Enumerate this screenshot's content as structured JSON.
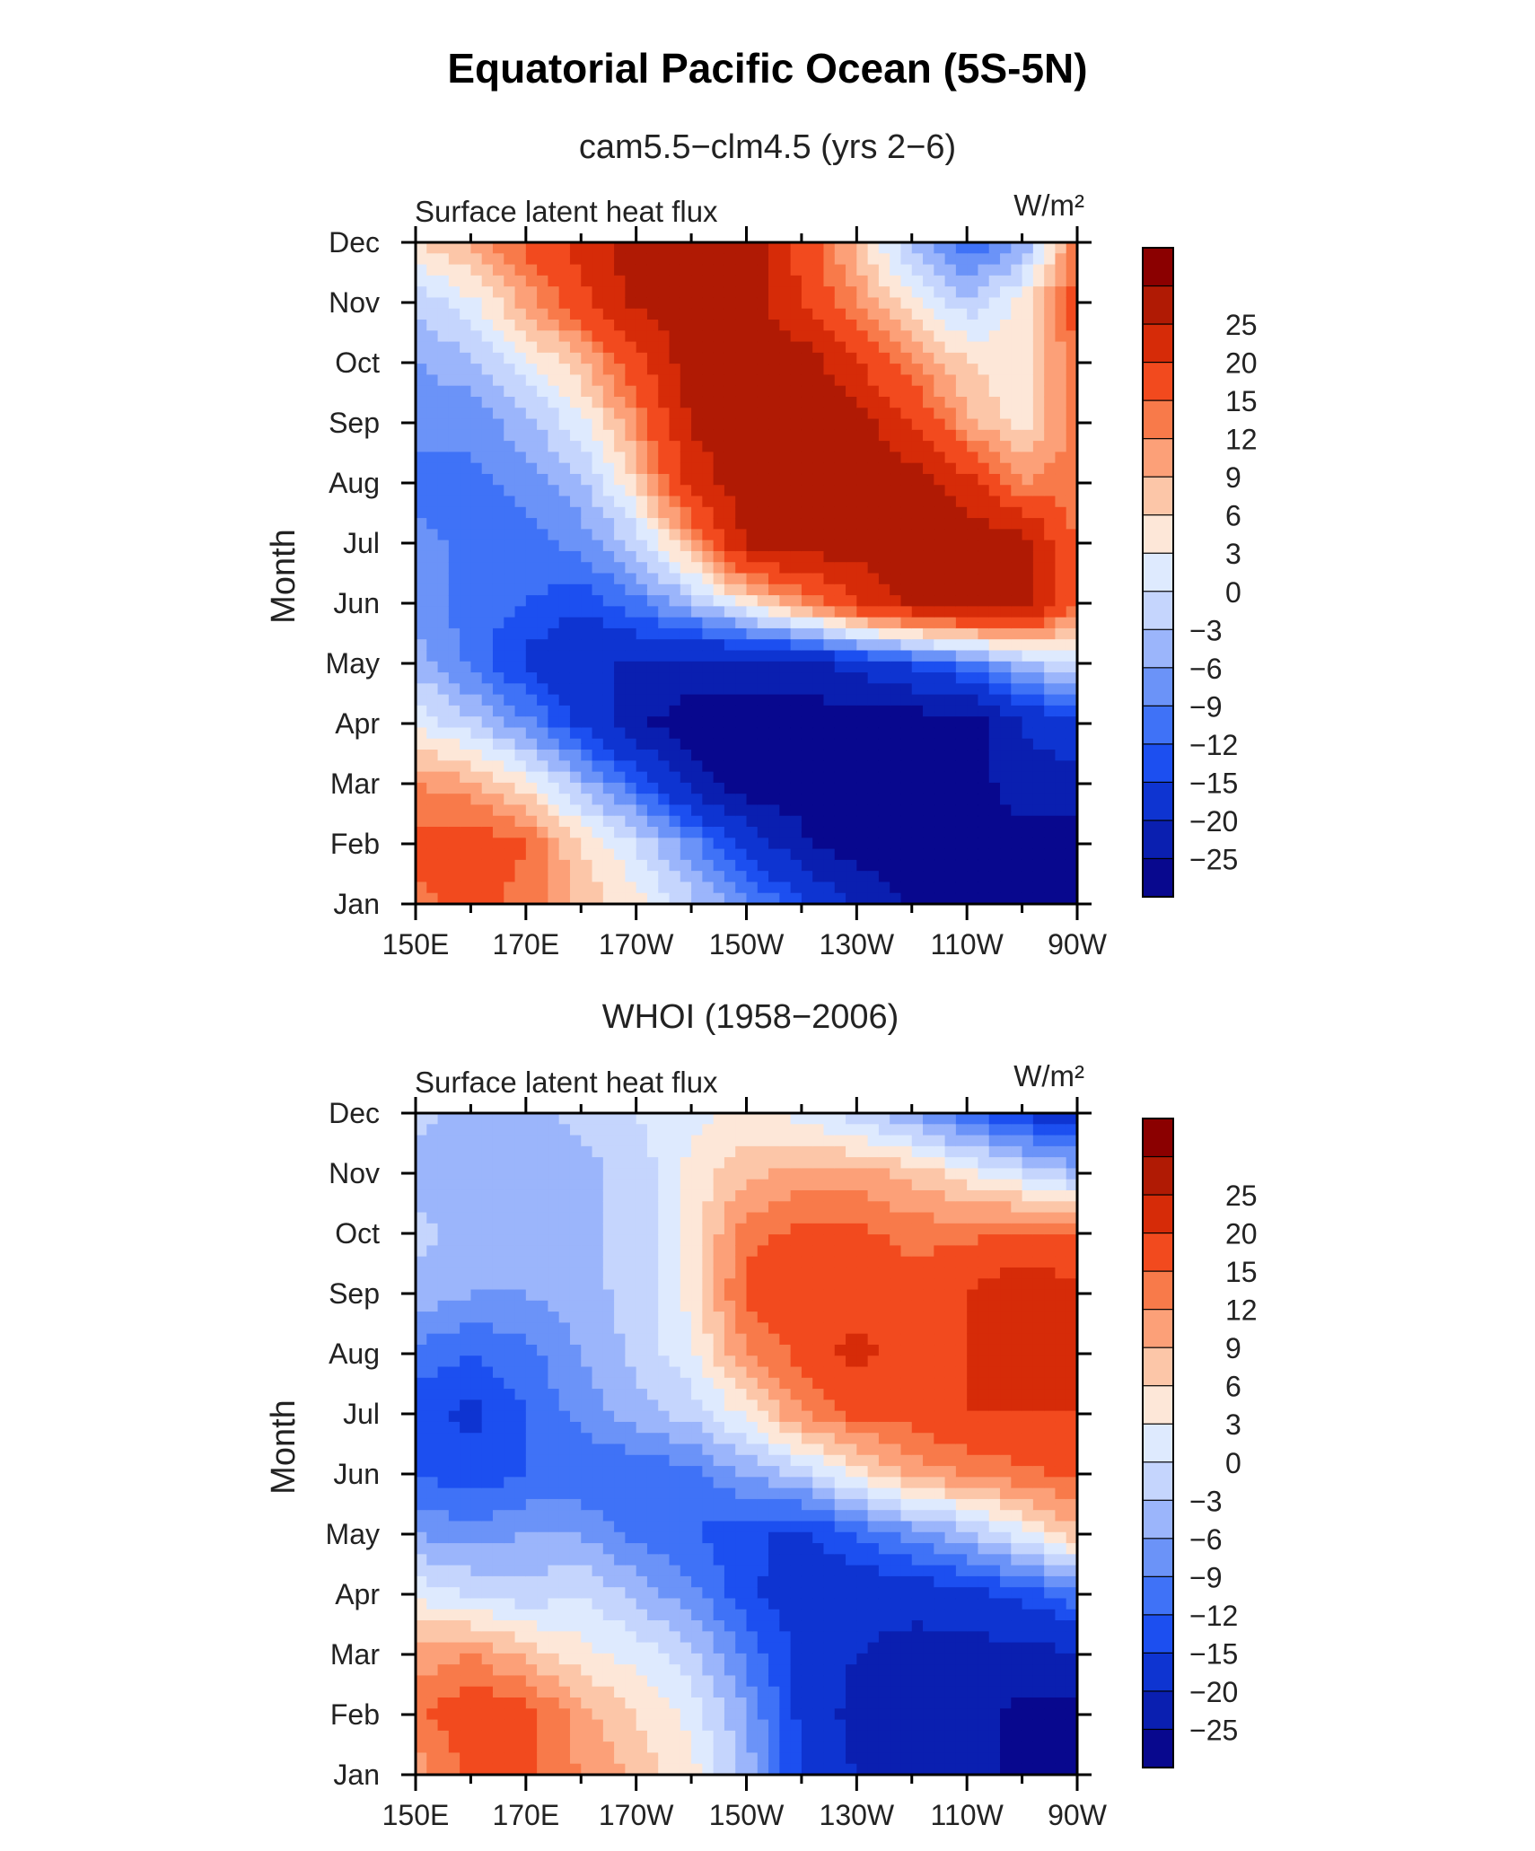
{
  "page": {
    "title": "Equatorial Pacific Ocean (5S-5N)"
  },
  "chart_data": [
    {
      "type": "heatmap",
      "title": "cam5.5−clm4.5 (yrs 2−6)",
      "left_label": "Surface latent heat flux",
      "units": "W/m²",
      "ylabel": "Month",
      "x_tick_labels": [
        "150E",
        "170E",
        "170W",
        "150W",
        "130W",
        "110W",
        "90W"
      ],
      "y_tick_labels": [
        "Jan",
        "Feb",
        "Mar",
        "Apr",
        "May",
        "Jun",
        "Jul",
        "Aug",
        "Sep",
        "Oct",
        "Nov",
        "Dec"
      ],
      "x_lon": [
        150,
        160,
        170,
        180,
        190,
        200,
        210,
        220,
        230,
        240,
        250,
        260,
        270
      ],
      "months": [
        1,
        2,
        3,
        4,
        5,
        6,
        7,
        8,
        9,
        10,
        11,
        12
      ],
      "values": [
        [
          14,
          16,
          14,
          8,
          4,
          -2,
          -8,
          -14,
          -20,
          -26,
          -28,
          -28,
          -28
        ],
        [
          16,
          18,
          15,
          6,
          0,
          -8,
          -16,
          -24,
          -28,
          -28,
          -28,
          -28,
          -28
        ],
        [
          12,
          10,
          4,
          -4,
          -12,
          -22,
          -28,
          -28,
          -28,
          -28,
          -28,
          -22,
          -22
        ],
        [
          2,
          -2,
          -8,
          -16,
          -24,
          -28,
          -28,
          -28,
          -28,
          -28,
          -28,
          -20,
          -16
        ],
        [
          -4,
          -10,
          -16,
          -20,
          -20,
          -22,
          -22,
          -22,
          -18,
          -14,
          -10,
          -4,
          0
        ],
        [
          -8,
          -10,
          -12,
          -14,
          -10,
          -4,
          4,
          12,
          20,
          26,
          28,
          28,
          14
        ],
        [
          -8,
          -10,
          -10,
          -8,
          -2,
          10,
          26,
          28,
          28,
          28,
          28,
          28,
          14
        ],
        [
          -10,
          -10,
          -8,
          -4,
          6,
          22,
          28,
          28,
          28,
          28,
          22,
          12,
          14
        ],
        [
          -8,
          -8,
          -4,
          2,
          12,
          26,
          28,
          28,
          28,
          20,
          10,
          4,
          14
        ],
        [
          -6,
          -4,
          2,
          8,
          18,
          28,
          28,
          28,
          20,
          12,
          6,
          4,
          14
        ],
        [
          -2,
          2,
          10,
          18,
          26,
          28,
          28,
          20,
          12,
          4,
          -2,
          4,
          18
        ],
        [
          6,
          10,
          16,
          22,
          28,
          28,
          28,
          18,
          8,
          -4,
          -12,
          -6,
          14
        ]
      ],
      "contour_levels": [
        -25,
        -20,
        -15,
        -12,
        -9,
        -6,
        -3,
        0,
        3,
        6,
        9,
        12,
        15,
        20,
        25
      ],
      "colorbar_labels": [
        "25",
        "20",
        "15",
        "12",
        "9",
        "6",
        "3",
        "0",
        "−3",
        "−6",
        "−9",
        "−12",
        "−15",
        "−20",
        "−25"
      ],
      "colors": [
        "#08088e",
        "#0a1fb0",
        "#0e34d1",
        "#1c4ff0",
        "#3f72f7",
        "#6b93f8",
        "#9bb5fb",
        "#c5d5fd",
        "#deeafe",
        "#fde7d8",
        "#fcc6a8",
        "#fca078",
        "#f87a4a",
        "#f24a1e",
        "#d62b08",
        "#b01a04",
        "#8b0000"
      ]
    },
    {
      "type": "heatmap",
      "title": "WHOI (1958−2006)",
      "left_label": "Surface latent heat flux",
      "units": "W/m²",
      "ylabel": "Month",
      "x_tick_labels": [
        "150E",
        "170E",
        "170W",
        "150W",
        "130W",
        "110W",
        "90W"
      ],
      "y_tick_labels": [
        "Jan",
        "Feb",
        "Mar",
        "Apr",
        "May",
        "Jun",
        "Jul",
        "Aug",
        "Sep",
        "Oct",
        "Nov",
        "Dec"
      ],
      "x_lon": [
        150,
        160,
        170,
        180,
        190,
        200,
        210,
        220,
        230,
        240,
        250,
        260,
        270
      ],
      "months": [
        1,
        2,
        3,
        4,
        5,
        6,
        7,
        8,
        9,
        10,
        11,
        12
      ],
      "values": [
        [
          10,
          16,
          16,
          12,
          8,
          4,
          -4,
          -16,
          -20,
          -22,
          -24,
          -26,
          -28
        ],
        [
          14,
          18,
          17,
          10,
          6,
          2,
          -6,
          -16,
          -22,
          -24,
          -24,
          -26,
          -28
        ],
        [
          10,
          12,
          8,
          4,
          2,
          -2,
          -10,
          -16,
          -20,
          -22,
          -22,
          -22,
          -20
        ],
        [
          2,
          0,
          -2,
          0,
          -4,
          -8,
          -14,
          -18,
          -18,
          -18,
          -16,
          -14,
          -10
        ],
        [
          -6,
          -8,
          -6,
          -6,
          -10,
          -12,
          -14,
          -16,
          -12,
          -8,
          -4,
          2,
          8
        ],
        [
          -12,
          -14,
          -12,
          -12,
          -12,
          -10,
          -6,
          -2,
          4,
          10,
          12,
          14,
          16
        ],
        [
          -14,
          -16,
          -12,
          -8,
          -4,
          -2,
          4,
          12,
          16,
          16,
          20,
          20,
          20
        ],
        [
          -10,
          -12,
          -10,
          -6,
          -2,
          2,
          12,
          16,
          22,
          16,
          20,
          22,
          22
        ],
        [
          -4,
          -6,
          -6,
          -4,
          -2,
          4,
          16,
          18,
          18,
          16,
          20,
          24,
          22
        ],
        [
          -2,
          -4,
          -6,
          -4,
          -2,
          4,
          14,
          16,
          16,
          14,
          14,
          16,
          14
        ],
        [
          -4,
          -6,
          -6,
          -4,
          -2,
          4,
          8,
          10,
          10,
          8,
          4,
          0,
          -4
        ],
        [
          -2,
          -4,
          -4,
          -2,
          0,
          2,
          4,
          2,
          -2,
          -6,
          -12,
          -16,
          -18
        ]
      ],
      "contour_levels": [
        -25,
        -20,
        -15,
        -12,
        -9,
        -6,
        -3,
        0,
        3,
        6,
        9,
        12,
        15,
        20,
        25
      ],
      "colorbar_labels": [
        "25",
        "20",
        "15",
        "12",
        "9",
        "6",
        "3",
        "0",
        "−3",
        "−6",
        "−9",
        "−12",
        "−15",
        "−20",
        "−25"
      ],
      "colors": [
        "#08088e",
        "#0a1fb0",
        "#0e34d1",
        "#1c4ff0",
        "#3f72f7",
        "#6b93f8",
        "#9bb5fb",
        "#c5d5fd",
        "#deeafe",
        "#fde7d8",
        "#fcc6a8",
        "#fca078",
        "#f87a4a",
        "#f24a1e",
        "#d62b08",
        "#b01a04",
        "#8b0000"
      ]
    }
  ]
}
